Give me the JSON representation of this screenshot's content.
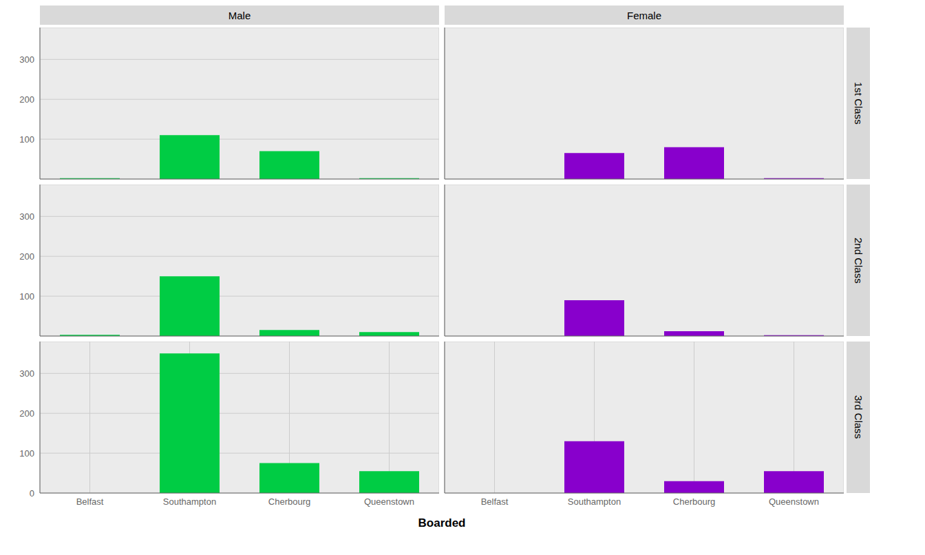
{
  "chart_data": [
    {
      "type": "bar",
      "title": "Male",
      "categories": [
        "Belfast",
        "Southampton",
        "Cherbourg",
        "Queenstown"
      ],
      "values": [
        2,
        110,
        70,
        2
      ],
      "color": "#00cc44",
      "ylim": [
        0,
        380
      ],
      "yticks": [
        0,
        100,
        200,
        300
      ],
      "grid": true,
      "tick_labels": "y"
    },
    {
      "type": "bar",
      "title": "Female",
      "annotations": [
        "1st Class"
      ],
      "categories": [
        "Belfast",
        "Southampton",
        "Cherbourg",
        "Queenstown"
      ],
      "values": [
        0,
        65,
        80,
        2
      ],
      "color": "#8800cc",
      "ylim": [
        0,
        380
      ],
      "yticks": [
        0,
        100,
        200,
        300
      ],
      "grid": true,
      "tick_labels": false
    },
    {
      "type": "bar",
      "categories": [
        "Belfast",
        "Southampton",
        "Cherbourg",
        "Queenstown"
      ],
      "values": [
        3,
        150,
        15,
        10
      ],
      "color": "#00cc44",
      "ylim": [
        0,
        380
      ],
      "yticks": [
        0,
        100,
        200,
        300
      ],
      "grid": true,
      "tick_labels": "y"
    },
    {
      "type": "bar",
      "annotations": [
        "2nd Class"
      ],
      "categories": [
        "Belfast",
        "Southampton",
        "Cherbourg",
        "Queenstown"
      ],
      "values": [
        0,
        90,
        12,
        2
      ],
      "color": "#8800cc",
      "ylim": [
        0,
        380
      ],
      "yticks": [
        0,
        100,
        200,
        300
      ],
      "grid": true,
      "tick_labels": false
    },
    {
      "type": "bar",
      "xlabel": "Boarded",
      "categories": [
        "Belfast",
        "Southampton",
        "Cherbourg",
        "Queenstown"
      ],
      "values": [
        0,
        350,
        75,
        55
      ],
      "color": "#00cc44",
      "ylim": [
        0,
        380
      ],
      "yticks": [
        0,
        100,
        200,
        300
      ],
      "grid": true
    },
    {
      "type": "bar",
      "annotations": [
        "3rd Class"
      ],
      "categories": [
        "Belfast",
        "Southampton",
        "Cherbourg",
        "Queenstown"
      ],
      "values": [
        0,
        130,
        30,
        55
      ],
      "color": "#8800cc",
      "ylim": [
        0,
        380
      ],
      "yticks": [
        0,
        100,
        200,
        300
      ],
      "grid": true,
      "tick_labels": "x"
    }
  ]
}
